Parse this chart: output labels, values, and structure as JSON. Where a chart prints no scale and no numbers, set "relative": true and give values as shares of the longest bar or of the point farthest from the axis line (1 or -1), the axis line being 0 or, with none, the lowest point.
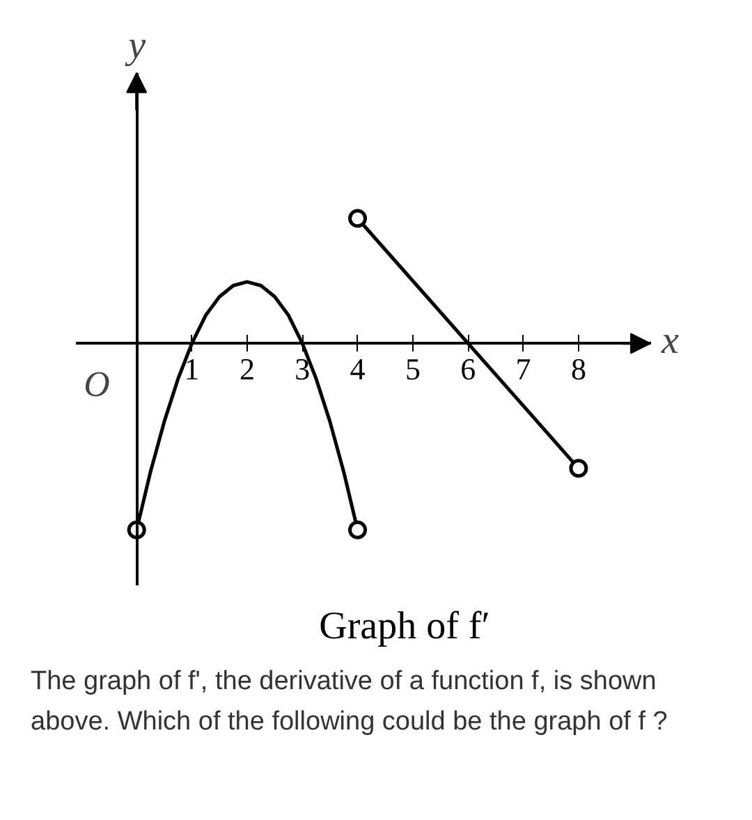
{
  "chart_data": {
    "type": "line",
    "relative": true,
    "title": "Graph of f′",
    "xlabel": "x",
    "ylabel": "y",
    "xlim": [
      -1.1,
      9.3
    ],
    "xticks": [
      1,
      2,
      3,
      4,
      5,
      6,
      7,
      8
    ],
    "grid": false,
    "line_style": "solid",
    "series": [
      {
        "color": "#000000",
        "x": [
          0,
          0.25,
          0.5,
          0.75,
          1,
          1.25,
          1.5,
          1.75,
          2,
          2.25,
          2.5,
          2.75,
          3,
          3.25,
          3.5,
          3.75,
          4
        ],
        "values": [
          -1,
          -0.69,
          -0.42,
          -0.19,
          0,
          0.15,
          0.25,
          0.31,
          0.33,
          0.31,
          0.25,
          0.15,
          0,
          -0.19,
          -0.42,
          -0.69,
          -1
        ]
      },
      {
        "color": "#000000",
        "x": [
          4,
          8
        ],
        "values": [
          0.67,
          -0.67
        ]
      },
      {
        "type": "scatter",
        "marker": "circle",
        "color": "#000000",
        "x": [
          0,
          4,
          4,
          8
        ],
        "values": [
          -1,
          -1,
          0.67,
          -0.67
        ]
      }
    ],
    "annotations": [
      "O",
      "The graph of f', the derivative of a function f, is shown above. Which of the following could be the graph of f ?"
    ]
  }
}
